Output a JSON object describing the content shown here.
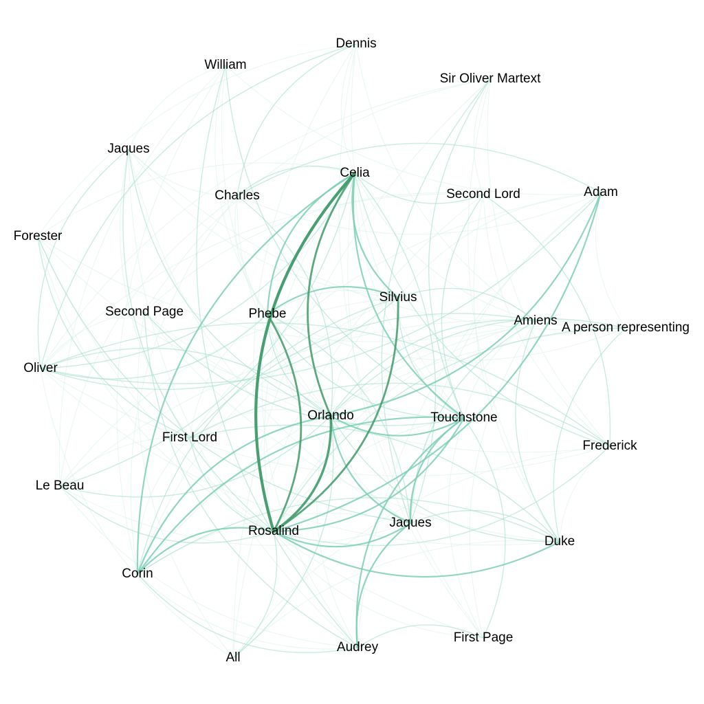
{
  "colors": {
    "background": "#ffffff",
    "edge_strong": "#3f9a6a",
    "edge_medium": "#7ccfb6",
    "edge_light": "#a7dfce",
    "edge_faint": "#d9f1ea",
    "label": "#000000"
  },
  "nodes": [
    {
      "id": "dennis",
      "label": "Dennis"
    },
    {
      "id": "william",
      "label": "William"
    },
    {
      "id": "sir_oliver",
      "label": "Sir Oliver Martext"
    },
    {
      "id": "jaques_lord",
      "label": "Jaques"
    },
    {
      "id": "celia",
      "label": "Celia"
    },
    {
      "id": "charles",
      "label": "Charles"
    },
    {
      "id": "second_lord",
      "label": "Second Lord"
    },
    {
      "id": "adam",
      "label": "Adam"
    },
    {
      "id": "forester",
      "label": "Forester"
    },
    {
      "id": "silvius",
      "label": "Silvius"
    },
    {
      "id": "second_page",
      "label": "Second Page"
    },
    {
      "id": "phebe",
      "label": "Phebe"
    },
    {
      "id": "amiens",
      "label": "Amiens"
    },
    {
      "id": "hymen",
      "label": "A person representing"
    },
    {
      "id": "oliver",
      "label": "Oliver"
    },
    {
      "id": "orlando",
      "label": "Orlando"
    },
    {
      "id": "touchstone",
      "label": "Touchstone"
    },
    {
      "id": "first_lord",
      "label": "First Lord"
    },
    {
      "id": "frederick",
      "label": "Frederick"
    },
    {
      "id": "le_beau",
      "label": "Le Beau"
    },
    {
      "id": "rosalind",
      "label": "Rosalind"
    },
    {
      "id": "jaques",
      "label": "Jaques"
    },
    {
      "id": "duke",
      "label": "Duke"
    },
    {
      "id": "corin",
      "label": "Corin"
    },
    {
      "id": "first_page",
      "label": "First Page"
    },
    {
      "id": "audrey",
      "label": "Audrey"
    },
    {
      "id": "all",
      "label": "All"
    }
  ],
  "edges": [
    {
      "source": "celia",
      "target": "rosalind",
      "weight": 5
    },
    {
      "source": "rosalind",
      "target": "orlando",
      "weight": 4
    },
    {
      "source": "celia",
      "target": "orlando",
      "weight": 3
    },
    {
      "source": "rosalind",
      "target": "phebe",
      "weight": 3
    },
    {
      "source": "rosalind",
      "target": "silvius",
      "weight": 3
    },
    {
      "source": "celia",
      "target": "phebe",
      "weight": 2
    },
    {
      "source": "celia",
      "target": "silvius",
      "weight": 2
    },
    {
      "source": "rosalind",
      "target": "touchstone",
      "weight": 2
    },
    {
      "source": "orlando",
      "target": "adam",
      "weight": 2
    },
    {
      "source": "rosalind",
      "target": "adam",
      "weight": 2
    },
    {
      "source": "orlando",
      "target": "touchstone",
      "weight": 2
    },
    {
      "source": "orlando",
      "target": "jaques",
      "weight": 2
    },
    {
      "source": "touchstone",
      "target": "audrey",
      "weight": 2
    },
    {
      "source": "jaques",
      "target": "audrey",
      "weight": 2
    },
    {
      "source": "rosalind",
      "target": "corin",
      "weight": 2
    },
    {
      "source": "orlando",
      "target": "corin",
      "weight": 2
    },
    {
      "source": "celia",
      "target": "corin",
      "weight": 2
    },
    {
      "source": "touchstone",
      "target": "jaques",
      "weight": 2
    },
    {
      "source": "celia",
      "target": "touchstone",
      "weight": 2
    },
    {
      "source": "silvius",
      "target": "phebe",
      "weight": 2
    },
    {
      "source": "rosalind",
      "target": "jaques",
      "weight": 2
    },
    {
      "source": "rosalind",
      "target": "duke",
      "weight": 2
    },
    {
      "source": "touchstone",
      "target": "corin",
      "weight": 2
    },
    {
      "source": "orlando",
      "target": "duke",
      "weight": 1
    },
    {
      "source": "celia",
      "target": "second_lord",
      "weight": 1
    },
    {
      "source": "celia",
      "target": "charles",
      "weight": 1
    },
    {
      "source": "orlando",
      "target": "oliver",
      "weight": 1
    },
    {
      "source": "orlando",
      "target": "charles",
      "weight": 1
    },
    {
      "source": "rosalind",
      "target": "frederick",
      "weight": 1
    },
    {
      "source": "celia",
      "target": "frederick",
      "weight": 1
    },
    {
      "source": "amiens",
      "target": "jaques",
      "weight": 1
    },
    {
      "source": "amiens",
      "target": "duke",
      "weight": 1
    },
    {
      "source": "duke",
      "target": "jaques",
      "weight": 1
    },
    {
      "source": "duke",
      "target": "first_lord",
      "weight": 1
    },
    {
      "source": "first_lord",
      "target": "rosalind",
      "weight": 1
    },
    {
      "source": "second_lord",
      "target": "touchstone",
      "weight": 1
    },
    {
      "source": "silvius",
      "target": "touchstone",
      "weight": 1
    },
    {
      "source": "silvius",
      "target": "corin",
      "weight": 1
    },
    {
      "source": "phebe",
      "target": "orlando",
      "weight": 1
    },
    {
      "source": "phebe",
      "target": "touchstone",
      "weight": 1
    },
    {
      "source": "hymen",
      "target": "rosalind",
      "weight": 1
    },
    {
      "source": "hymen",
      "target": "orlando",
      "weight": 1
    },
    {
      "source": "hymen",
      "target": "duke",
      "weight": 1
    },
    {
      "source": "amiens",
      "target": "orlando",
      "weight": 1
    },
    {
      "source": "oliver",
      "target": "silvius",
      "weight": 1
    },
    {
      "source": "oliver",
      "target": "phebe",
      "weight": 1
    },
    {
      "source": "oliver",
      "target": "celia",
      "weight": 1
    },
    {
      "source": "oliver",
      "target": "adam",
      "weight": 1
    },
    {
      "source": "le_beau",
      "target": "rosalind",
      "weight": 1
    },
    {
      "source": "le_beau",
      "target": "celia",
      "weight": 1
    },
    {
      "source": "le_beau",
      "target": "orlando",
      "weight": 1
    },
    {
      "source": "second_page",
      "target": "touchstone",
      "weight": 1
    },
    {
      "source": "first_page",
      "target": "touchstone",
      "weight": 1
    },
    {
      "source": "second_page",
      "target": "audrey",
      "weight": 1
    },
    {
      "source": "first_page",
      "target": "audrey",
      "weight": 1
    },
    {
      "source": "sir_oliver",
      "target": "touchstone",
      "weight": 1
    },
    {
      "source": "sir_oliver",
      "target": "jaques",
      "weight": 1
    },
    {
      "source": "william",
      "target": "touchstone",
      "weight": 1
    },
    {
      "source": "william",
      "target": "audrey",
      "weight": 1
    },
    {
      "source": "dennis",
      "target": "oliver",
      "weight": 1
    },
    {
      "source": "dennis",
      "target": "charles",
      "weight": 1
    },
    {
      "source": "jaques_lord",
      "target": "orlando",
      "weight": 1
    },
    {
      "source": "jaques_lord",
      "target": "rosalind",
      "weight": 1
    },
    {
      "source": "jaques_lord",
      "target": "oliver",
      "weight": 1
    },
    {
      "source": "forester",
      "target": "jaques",
      "weight": 1
    },
    {
      "source": "forester",
      "target": "first_lord",
      "weight": 1
    },
    {
      "source": "all",
      "target": "orlando",
      "weight": 1
    },
    {
      "source": "all",
      "target": "rosalind",
      "weight": 1
    },
    {
      "source": "frederick",
      "target": "oliver",
      "weight": 1
    },
    {
      "source": "frederick",
      "target": "first_lord",
      "weight": 1
    },
    {
      "source": "frederick",
      "target": "second_lord",
      "weight": 1
    },
    {
      "source": "adam",
      "target": "charles",
      "weight": 1
    },
    {
      "source": "amiens",
      "target": "first_lord",
      "weight": 1
    },
    {
      "source": "amiens",
      "target": "silvius",
      "weight": 1
    },
    {
      "source": "corin",
      "target": "audrey",
      "weight": 1
    },
    {
      "source": "duke",
      "target": "corin",
      "weight": 1
    },
    {
      "source": "jaques",
      "target": "phebe",
      "weight": 1
    },
    {
      "source": "jaques",
      "target": "celia",
      "weight": 1
    }
  ]
}
